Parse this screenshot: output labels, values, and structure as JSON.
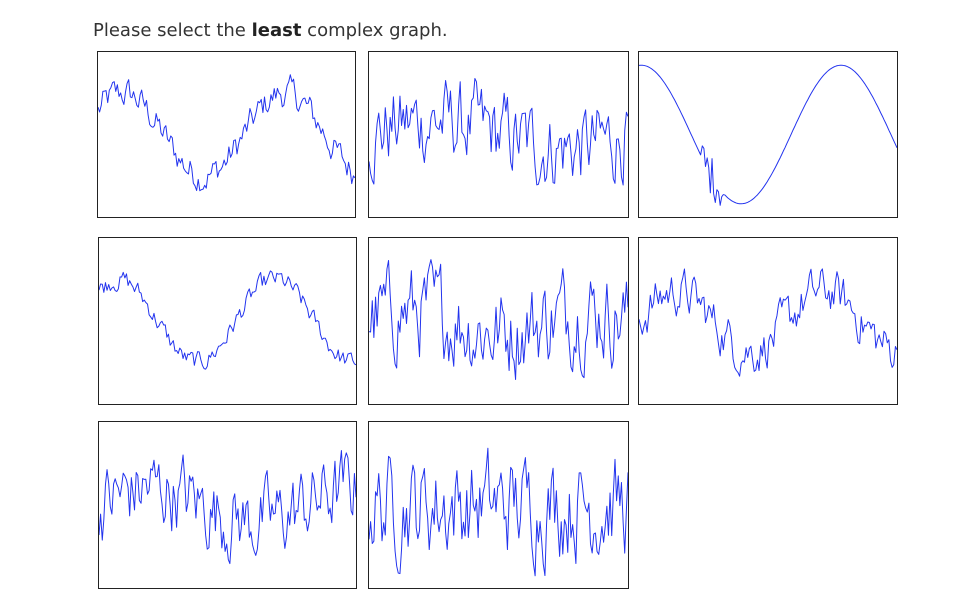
{
  "prompt": {
    "before": "Please select the ",
    "emphasis": "least",
    "after": " complex graph."
  },
  "line_color": "#2233ee",
  "graphs": [
    {
      "id": "graph-1",
      "complexity": "medium-low"
    },
    {
      "id": "graph-2",
      "complexity": "high"
    },
    {
      "id": "graph-3",
      "complexity": "lowest"
    },
    {
      "id": "graph-4",
      "complexity": "low"
    },
    {
      "id": "graph-5",
      "complexity": "high"
    },
    {
      "id": "graph-6",
      "complexity": "medium"
    },
    {
      "id": "graph-7",
      "complexity": "high"
    },
    {
      "id": "graph-8",
      "complexity": "highest"
    }
  ]
}
